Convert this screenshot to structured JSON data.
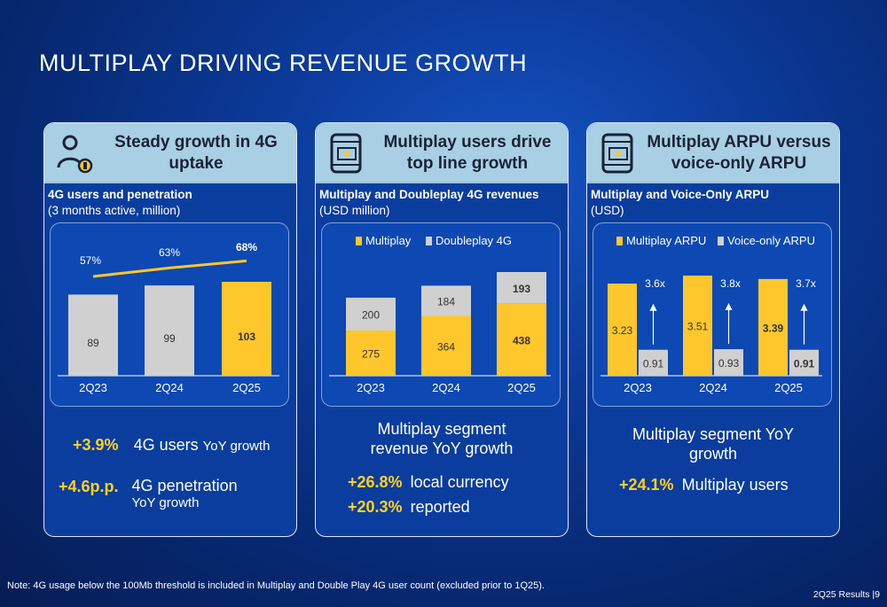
{
  "title": "MULTIPLAY DRIVING REVENUE GROWTH",
  "colors": {
    "accent_yellow": "#ffc72c",
    "gray_bar": "#d0d0d0",
    "header_bg": "#a9cfe4"
  },
  "cards": [
    {
      "icon": "user-signal-icon",
      "heading": "Steady growth in 4G uptake",
      "sub_bold": "4G users and penetration",
      "sub_normal": "(3 months active, million)",
      "kpis": [
        {
          "value": "+3.9%",
          "text": "4G users",
          "text_small": "YoY growth"
        },
        {
          "value": "+4.6p.p.",
          "text": "4G penetration",
          "text_small": "YoY growth"
        }
      ]
    },
    {
      "icon": "phone-money-icon",
      "heading": "Multiplay users drive top line growth",
      "sub_bold": "Multiplay and Doubleplay 4G revenues",
      "sub_normal": "(USD million)",
      "caption": "Multiplay segment revenue YoY growth",
      "kpis": [
        {
          "value": "+26.8%",
          "text": "local currency"
        },
        {
          "value": "+20.3%",
          "text": "reported"
        }
      ]
    },
    {
      "icon": "phone-money-icon",
      "heading": "Multiplay ARPU versus voice-only ARPU",
      "sub_bold": "Multiplay and Voice-Only ARPU",
      "sub_normal": "(USD)",
      "caption": "Multiplay segment YoY growth",
      "kpis": [
        {
          "value": "+24.1%",
          "text": "Multiplay users"
        }
      ]
    }
  ],
  "chart_data": [
    {
      "type": "bar",
      "categories": [
        "2Q23",
        "2Q24",
        "2Q25"
      ],
      "values": [
        89,
        99,
        103
      ],
      "value_labels": [
        "89",
        "99",
        "103"
      ],
      "line": {
        "values": [
          57,
          63,
          68
        ],
        "labels": [
          "57%",
          "63%",
          "68%"
        ]
      },
      "ylim": [
        0,
        130
      ]
    },
    {
      "type": "bar",
      "stacked": true,
      "categories": [
        "2Q23",
        "2Q24",
        "2Q25"
      ],
      "series": [
        {
          "name": "Multiplay",
          "values": [
            275,
            364,
            438
          ],
          "color": "#ffc72c"
        },
        {
          "name": "Doubleplay 4G",
          "values": [
            200,
            184,
            193
          ],
          "color": "#d0d0d0"
        }
      ],
      "legend": "top"
    },
    {
      "type": "bar",
      "categories": [
        "2Q23",
        "2Q24",
        "2Q25"
      ],
      "series": [
        {
          "name": "Multiplay ARPU",
          "values": [
            3.23,
            3.51,
            3.39
          ],
          "color": "#ffc72c"
        },
        {
          "name": "Voice-only ARPU",
          "values": [
            0.91,
            0.93,
            0.91
          ],
          "color": "#d0d0d0"
        }
      ],
      "value_labels": [
        [
          "3.23",
          "3.51",
          "3.39"
        ],
        [
          "0.91",
          "0.93",
          "0.91"
        ]
      ],
      "multiples": [
        "3.6x",
        "3.8x",
        "3.7x"
      ],
      "legend": "top"
    }
  ],
  "note": "Note: 4G usage below the 100Mb threshold is included in Multiplay and Double Play 4G user count (excluded prior to 1Q25).",
  "footer": "2Q25 Results |9"
}
